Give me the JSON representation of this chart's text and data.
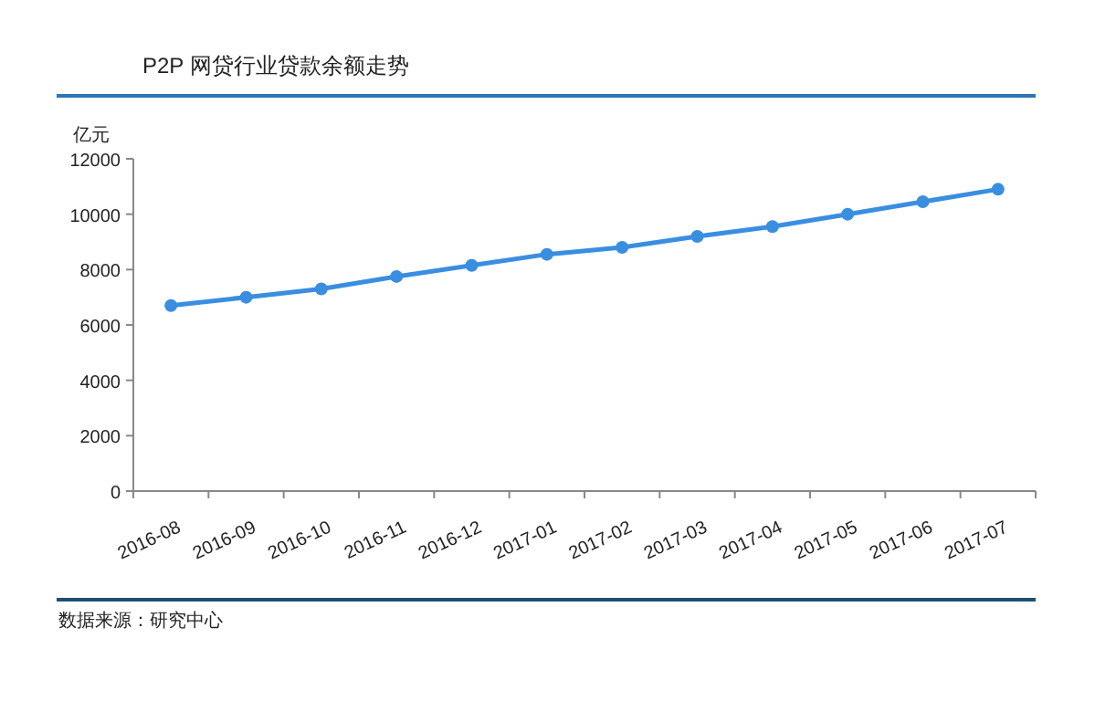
{
  "chart_data": {
    "type": "line",
    "title": "P2P 网贷行业贷款余额走势",
    "ylabel": "亿元",
    "categories": [
      "2016-08",
      "2016-09",
      "2016-10",
      "2016-11",
      "2016-12",
      "2017-01",
      "2017-02",
      "2017-03",
      "2017-04",
      "2017-05",
      "2017-06",
      "2017-07"
    ],
    "series": [
      {
        "color": "#3a8ee0",
        "values": [
          6700,
          7000,
          7300,
          7750,
          8150,
          8550,
          8800,
          9200,
          9550,
          10000,
          10450,
          10900
        ]
      }
    ],
    "ylim": [
      0,
      12000
    ],
    "yticks": [
      0,
      2000,
      4000,
      6000,
      8000,
      10000,
      12000
    ],
    "marker": "circle",
    "line_style": "solid",
    "grid": false,
    "annotations": [
      "数据来源：研究中心"
    ]
  }
}
